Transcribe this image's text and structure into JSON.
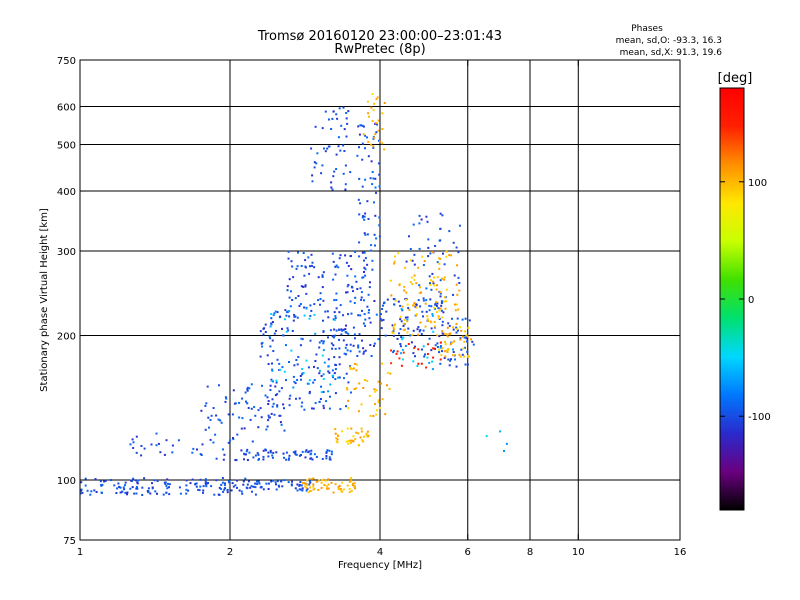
{
  "chart_data": {
    "type": "scatter",
    "title": "Tromsø 20160120 23:00:00–23:01:43",
    "subtitle": "RwPretec (8p)",
    "xlabel": "Frequency [MHz]",
    "ylabel": "Stationary phase Virtual Height [km]",
    "x_scale": "log",
    "y_scale": "log",
    "xlim": [
      1,
      16
    ],
    "ylim": [
      75,
      750
    ],
    "x_ticks": [
      1,
      2,
      4,
      6,
      8,
      10,
      16
    ],
    "x_tick_labels": [
      "1",
      "2",
      "4",
      "6",
      "8",
      "10",
      "16"
    ],
    "x_gridlines": [
      2,
      4,
      6,
      8,
      10
    ],
    "y_ticks": [
      75,
      100,
      200,
      300,
      400,
      500,
      600,
      750
    ],
    "y_tick_labels": [
      "75",
      "100",
      "200",
      "300",
      "400",
      "500",
      "600",
      "750"
    ],
    "y_gridlines": [
      100,
      200,
      300,
      400,
      500,
      600
    ],
    "grid": true,
    "stats": {
      "heading": "Phases",
      "line_o": "mean, sd,O:  -93.3, 16.3",
      "line_x": "mean, sd,X:  91.3, 19.6"
    },
    "colorbar": {
      "label": "[deg]",
      "range": [
        -180,
        180
      ],
      "ticks": [
        100,
        0,
        -100
      ],
      "tick_labels": [
        "100",
        "0",
        "-100"
      ],
      "colormap": [
        "#000000",
        "#6a0080",
        "#2a2acc",
        "#0078ff",
        "#00d8ff",
        "#00e070",
        "#40e000",
        "#c8ff00",
        "#ffe800",
        "#ff9000",
        "#ff2000",
        "#ff0000"
      ]
    },
    "series": [
      {
        "color_degree": -100,
        "clusters": [
          {
            "f": [
              1.0,
              2.3
            ],
            "h": [
              93,
              101
            ],
            "n": 160
          },
          {
            "f": [
              2.3,
              2.9
            ],
            "h": [
              95,
              100
            ],
            "n": 40
          },
          {
            "f": [
              2.05,
              3.3
            ],
            "h": [
              110,
              116
            ],
            "n": 70
          },
          {
            "f": [
              1.25,
              2.1
            ],
            "h": [
              110,
              125
            ],
            "n": 35
          },
          {
            "f": [
              1.75,
              2.6
            ],
            "h": [
              120,
              160
            ],
            "n": 70
          },
          {
            "f": [
              2.3,
              3.5
            ],
            "h": [
              140,
              230
            ],
            "n": 170
          },
          {
            "f": [
              2.6,
              3.1
            ],
            "h": [
              230,
              300
            ],
            "n": 50
          },
          {
            "f": [
              2.9,
              3.5
            ],
            "h": [
              400,
              600
            ],
            "n": 50
          },
          {
            "f": [
              3.2,
              3.9
            ],
            "h": [
              180,
              300
            ],
            "n": 110
          },
          {
            "f": [
              3.6,
              4.0
            ],
            "h": [
              300,
              560
            ],
            "n": 60
          },
          {
            "f": [
              3.9,
              5.4
            ],
            "h": [
              180,
              240
            ],
            "n": 100
          },
          {
            "f": [
              4.5,
              5.8
            ],
            "h": [
              240,
              360
            ],
            "n": 50
          },
          {
            "f": [
              5.2,
              6.2
            ],
            "h": [
              170,
              220
            ],
            "n": 40
          }
        ]
      },
      {
        "color_degree": -60,
        "clusters": [
          {
            "f": [
              2.4,
              3.3
            ],
            "h": [
              150,
              230
            ],
            "n": 40
          },
          {
            "f": [
              4.2,
              5.8
            ],
            "h": [
              170,
              230
            ],
            "n": 20
          },
          {
            "f": [
              6.5,
              8.0
            ],
            "h": [
              110,
              130
            ],
            "n": 4
          }
        ]
      },
      {
        "color_degree": 100,
        "clusters": [
          {
            "f": [
              2.8,
              3.6
            ],
            "h": [
              94,
              101
            ],
            "n": 60
          },
          {
            "f": [
              3.2,
              3.8
            ],
            "h": [
              118,
              128
            ],
            "n": 35
          },
          {
            "f": [
              3.4,
              4.2
            ],
            "h": [
              135,
              175
            ],
            "n": 40
          },
          {
            "f": [
              3.7,
              4.1
            ],
            "h": [
              480,
              640
            ],
            "n": 25
          },
          {
            "f": [
              4.2,
              5.8
            ],
            "h": [
              200,
              300
            ],
            "n": 110
          },
          {
            "f": [
              5.2,
              6.1
            ],
            "h": [
              180,
              210
            ],
            "n": 40
          }
        ]
      },
      {
        "color_degree": 150,
        "clusters": [
          {
            "f": [
              4.2,
              5.3
            ],
            "h": [
              170,
              195
            ],
            "n": 20
          }
        ]
      }
    ]
  }
}
